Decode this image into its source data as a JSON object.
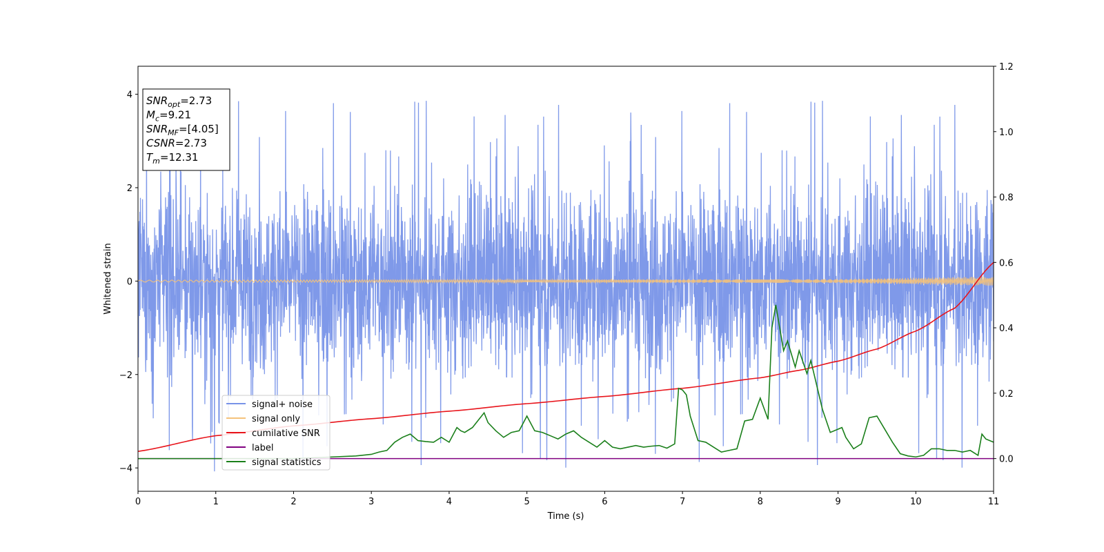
{
  "chart_data": {
    "type": "line",
    "xlabel": "Time (s)",
    "ylabel": "Whitened strain",
    "xlim": [
      0,
      11
    ],
    "ylim": [
      -4.5,
      4.6
    ],
    "ylim_right": [
      -0.1,
      1.2
    ],
    "x_ticks": [
      "0",
      "1",
      "2",
      "3",
      "4",
      "5",
      "6",
      "7",
      "8",
      "9",
      "10",
      "11"
    ],
    "y_ticks": [
      "−4",
      "−2",
      "0",
      "2",
      "4"
    ],
    "y_ticks_right": [
      "0.0",
      "0.2",
      "0.4",
      "0.6",
      "0.8",
      "1.0",
      "1.2"
    ],
    "grid": false,
    "legend_position": "lower-left",
    "annotation": {
      "lines": [
        {
          "base": "SNR",
          "sub": "opt",
          "value": "=2.73"
        },
        {
          "base": "M",
          "sub": "c",
          "value": "=9.21"
        },
        {
          "base": "SNR",
          "sub": "MF",
          "value": "=[4.05]"
        },
        {
          "base": "CSNR",
          "sub": "",
          "value": "=2.73"
        },
        {
          "base": "T",
          "sub": "m",
          "value": "=12.31"
        }
      ]
    },
    "series": [
      {
        "name": "signal+ noise",
        "color": "#7893e8",
        "axis": "left",
        "description_values": {
          "envelope_typical": [
            -2.0,
            2.3
          ],
          "peak_max": 4.15,
          "peak_min": -4.1
        }
      },
      {
        "name": "signal only",
        "color": "#f5c27a",
        "axis": "left",
        "x": [
          0,
          9,
          10,
          11
        ],
        "amplitude": [
          0.02,
          0.04,
          0.07,
          0.1
        ]
      },
      {
        "name": "cumilative SNR",
        "color": "#e8141b",
        "axis": "right",
        "x": [
          0,
          1,
          2,
          3,
          4,
          5,
          6,
          7,
          8,
          8.5,
          9,
          9.5,
          10,
          10.5,
          11
        ],
        "y": [
          0.022,
          0.07,
          0.1,
          0.122,
          0.145,
          0.168,
          0.19,
          0.215,
          0.247,
          0.27,
          0.298,
          0.335,
          0.39,
          0.46,
          0.6
        ]
      },
      {
        "name": "label",
        "color": "#800080",
        "axis": "right",
        "x": [
          0,
          11
        ],
        "y": [
          0,
          0
        ]
      },
      {
        "name": "signal statistics",
        "color": "#1a7f1a",
        "axis": "right",
        "x": [
          0,
          2.0,
          2.5,
          2.8,
          3.0,
          3.1,
          3.2,
          3.3,
          3.4,
          3.5,
          3.6,
          3.7,
          3.8,
          3.9,
          4.0,
          4.1,
          4.15,
          4.2,
          4.3,
          4.4,
          4.45,
          4.5,
          4.6,
          4.7,
          4.8,
          4.9,
          5.0,
          5.1,
          5.2,
          5.3,
          5.4,
          5.5,
          5.6,
          5.7,
          5.8,
          5.9,
          6.0,
          6.1,
          6.2,
          6.3,
          6.4,
          6.5,
          6.6,
          6.7,
          6.8,
          6.9,
          6.95,
          7.0,
          7.05,
          7.1,
          7.2,
          7.3,
          7.4,
          7.5,
          7.6,
          7.7,
          7.8,
          7.9,
          8.0,
          8.1,
          8.15,
          8.2,
          8.25,
          8.3,
          8.35,
          8.4,
          8.45,
          8.5,
          8.6,
          8.65,
          8.7,
          8.8,
          8.9,
          9.0,
          9.05,
          9.1,
          9.2,
          9.3,
          9.4,
          9.5,
          9.6,
          9.7,
          9.8,
          9.9,
          10.0,
          10.1,
          10.2,
          10.3,
          10.4,
          10.5,
          10.6,
          10.7,
          10.8,
          10.85,
          10.9,
          11.0
        ],
        "y": [
          0.0,
          0.0,
          0.005,
          0.008,
          0.013,
          0.02,
          0.025,
          0.05,
          0.065,
          0.075,
          0.055,
          0.052,
          0.05,
          0.065,
          0.05,
          0.095,
          0.085,
          0.08,
          0.095,
          0.125,
          0.14,
          0.11,
          0.085,
          0.065,
          0.08,
          0.085,
          0.13,
          0.085,
          0.08,
          0.07,
          0.06,
          0.075,
          0.085,
          0.065,
          0.05,
          0.035,
          0.055,
          0.035,
          0.03,
          0.035,
          0.04,
          0.035,
          0.038,
          0.04,
          0.032,
          0.045,
          0.215,
          0.21,
          0.195,
          0.13,
          0.055,
          0.05,
          0.035,
          0.02,
          0.025,
          0.03,
          0.115,
          0.12,
          0.185,
          0.12,
          0.4,
          0.47,
          0.4,
          0.33,
          0.36,
          0.32,
          0.28,
          0.33,
          0.26,
          0.3,
          0.25,
          0.15,
          0.08,
          0.09,
          0.095,
          0.065,
          0.03,
          0.045,
          0.125,
          0.13,
          0.09,
          0.05,
          0.015,
          0.008,
          0.005,
          0.01,
          0.03,
          0.03,
          0.025,
          0.025,
          0.02,
          0.025,
          0.01,
          0.075,
          0.06,
          0.05
        ]
      }
    ]
  }
}
